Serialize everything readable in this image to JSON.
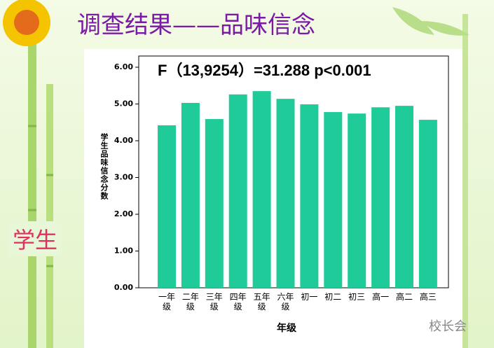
{
  "slide_title": "调查结果——品味信念",
  "side_label": "学生",
  "watermark": "校长会",
  "chart_data": {
    "type": "bar",
    "annotation": "F（13,9254）=31.288  p<0.001",
    "y_label": "学生品味信念分数",
    "x_label": "年级",
    "categories": [
      "一年级",
      "二年级",
      "三年级",
      "四年级",
      "五年级",
      "六年级",
      "初一",
      "初二",
      "初三",
      "高一",
      "高二",
      "高三"
    ],
    "values": [
      4.42,
      5.03,
      4.59,
      5.26,
      5.35,
      5.14,
      4.99,
      4.78,
      4.74,
      4.91,
      4.95,
      4.57
    ],
    "color": "#1fcc99",
    "ylim": [
      0,
      6
    ],
    "yticks": [
      {
        "value": 0,
        "label": "0.00"
      },
      {
        "value": 1,
        "label": "1.00"
      },
      {
        "value": 2,
        "label": "2.00"
      },
      {
        "value": 3,
        "label": "3.00"
      },
      {
        "value": 4,
        "label": "4.00"
      },
      {
        "value": 5,
        "label": "5.00"
      },
      {
        "value": 6,
        "label": "6.00"
      }
    ],
    "grid": false
  }
}
